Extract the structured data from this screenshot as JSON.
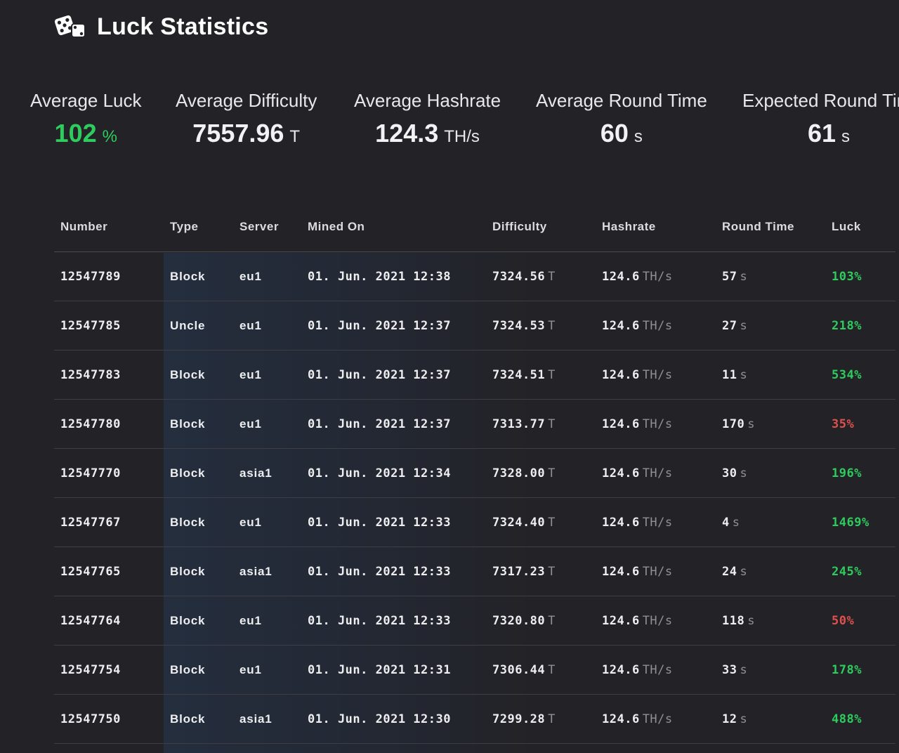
{
  "header": {
    "icon": "dice-icon",
    "title": "Luck Statistics"
  },
  "summary": [
    {
      "label": "Average Luck",
      "value": "102",
      "unit": "%",
      "color": "#2ecc5f"
    },
    {
      "label": "Average Difficulty",
      "value": "7557.96",
      "unit": "T"
    },
    {
      "label": "Average Hashrate",
      "value": "124.3",
      "unit": "TH/s"
    },
    {
      "label": "Average Round Time",
      "value": "60",
      "unit": "s"
    },
    {
      "label": "Expected Round Time",
      "value": "61",
      "unit": "s"
    }
  ],
  "table": {
    "columns": [
      "Number",
      "Type",
      "Server",
      "Mined On",
      "Difficulty",
      "Hashrate",
      "Round Time",
      "Luck"
    ],
    "rows": [
      {
        "number": "12547789",
        "type": "Block",
        "server": "eu1",
        "mined_on": "01. Jun. 2021 12:38",
        "difficulty": "7324.56",
        "difficulty_unit": "T",
        "hashrate": "124.6",
        "hashrate_unit": "TH/s",
        "round_time": "57",
        "round_unit": "s",
        "luck": "103%",
        "luck_status": "good"
      },
      {
        "number": "12547785",
        "type": "Uncle",
        "server": "eu1",
        "mined_on": "01. Jun. 2021 12:37",
        "difficulty": "7324.53",
        "difficulty_unit": "T",
        "hashrate": "124.6",
        "hashrate_unit": "TH/s",
        "round_time": "27",
        "round_unit": "s",
        "luck": "218%",
        "luck_status": "good"
      },
      {
        "number": "12547783",
        "type": "Block",
        "server": "eu1",
        "mined_on": "01. Jun. 2021 12:37",
        "difficulty": "7324.51",
        "difficulty_unit": "T",
        "hashrate": "124.6",
        "hashrate_unit": "TH/s",
        "round_time": "11",
        "round_unit": "s",
        "luck": "534%",
        "luck_status": "good"
      },
      {
        "number": "12547780",
        "type": "Block",
        "server": "eu1",
        "mined_on": "01. Jun. 2021 12:37",
        "difficulty": "7313.77",
        "difficulty_unit": "T",
        "hashrate": "124.6",
        "hashrate_unit": "TH/s",
        "round_time": "170",
        "round_unit": "s",
        "luck": "35%",
        "luck_status": "bad"
      },
      {
        "number": "12547770",
        "type": "Block",
        "server": "asia1",
        "mined_on": "01. Jun. 2021 12:34",
        "difficulty": "7328.00",
        "difficulty_unit": "T",
        "hashrate": "124.6",
        "hashrate_unit": "TH/s",
        "round_time": "30",
        "round_unit": "s",
        "luck": "196%",
        "luck_status": "good"
      },
      {
        "number": "12547767",
        "type": "Block",
        "server": "eu1",
        "mined_on": "01. Jun. 2021 12:33",
        "difficulty": "7324.40",
        "difficulty_unit": "T",
        "hashrate": "124.6",
        "hashrate_unit": "TH/s",
        "round_time": "4",
        "round_unit": "s",
        "luck": "1469%",
        "luck_status": "good"
      },
      {
        "number": "12547765",
        "type": "Block",
        "server": "asia1",
        "mined_on": "01. Jun. 2021 12:33",
        "difficulty": "7317.23",
        "difficulty_unit": "T",
        "hashrate": "124.6",
        "hashrate_unit": "TH/s",
        "round_time": "24",
        "round_unit": "s",
        "luck": "245%",
        "luck_status": "good"
      },
      {
        "number": "12547764",
        "type": "Block",
        "server": "eu1",
        "mined_on": "01. Jun. 2021 12:33",
        "difficulty": "7320.80",
        "difficulty_unit": "T",
        "hashrate": "124.6",
        "hashrate_unit": "TH/s",
        "round_time": "118",
        "round_unit": "s",
        "luck": "50%",
        "luck_status": "bad"
      },
      {
        "number": "12547754",
        "type": "Block",
        "server": "eu1",
        "mined_on": "01. Jun. 2021 12:31",
        "difficulty": "7306.44",
        "difficulty_unit": "T",
        "hashrate": "124.6",
        "hashrate_unit": "TH/s",
        "round_time": "33",
        "round_unit": "s",
        "luck": "178%",
        "luck_status": "good"
      },
      {
        "number": "12547750",
        "type": "Block",
        "server": "asia1",
        "mined_on": "01. Jun. 2021 12:30",
        "difficulty": "7299.28",
        "difficulty_unit": "T",
        "hashrate": "124.6",
        "hashrate_unit": "TH/s",
        "round_time": "12",
        "round_unit": "s",
        "luck": "488%",
        "luck_status": "good"
      }
    ]
  },
  "colors": {
    "background": "#232226",
    "good": "#2ecc5f",
    "bad": "#e0504e",
    "unit": "#8f9098"
  }
}
